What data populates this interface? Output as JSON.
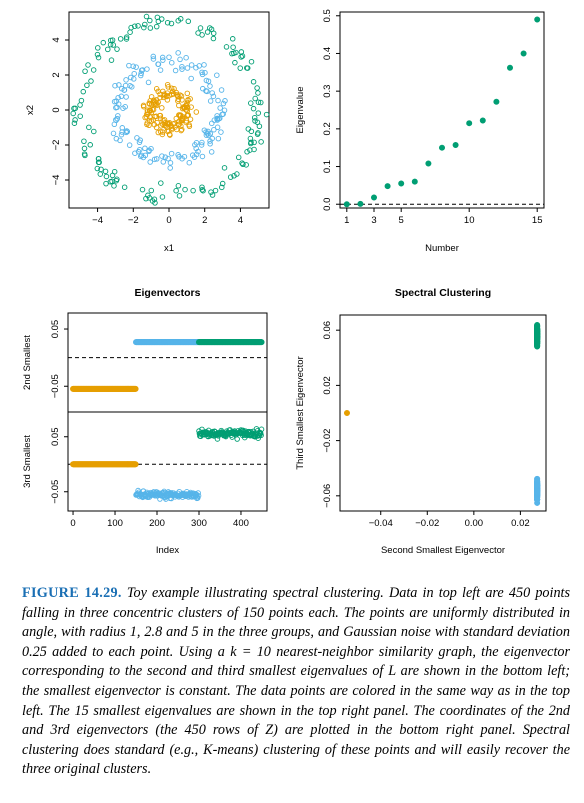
{
  "colors": {
    "orange": "#E69F00",
    "blue": "#56B4E9",
    "green": "#009E73"
  },
  "chart_data": [
    {
      "id": "scatter",
      "type": "scatter",
      "title": "",
      "xlabel": "x1",
      "ylabel": "x2",
      "xlim": [
        -5.6,
        5.6
      ],
      "ylim": [
        -5.6,
        5.6
      ],
      "xticks": [
        -4,
        -2,
        0,
        2,
        4
      ],
      "yticks": [
        -4,
        -2,
        0,
        2,
        4
      ],
      "series": [
        {
          "color": "orange",
          "radius": 1.0,
          "n": 150
        },
        {
          "color": "blue",
          "radius": 2.8,
          "n": 150
        },
        {
          "color": "green",
          "radius": 5.0,
          "n": 150
        }
      ]
    },
    {
      "id": "eigenvalues",
      "type": "scatter",
      "title": "",
      "xlabel": "Number",
      "ylabel": "Eigenvalue",
      "xlim": [
        0.5,
        15.5
      ],
      "ylim": [
        -0.01,
        0.51
      ],
      "xticks": [
        1,
        3,
        5,
        10,
        15
      ],
      "yticks": [
        0.0,
        0.1,
        0.2,
        0.3,
        0.4,
        0.5
      ],
      "reference_line": 0,
      "x": [
        1,
        2,
        3,
        4,
        5,
        6,
        7,
        8,
        9,
        10,
        11,
        12,
        13,
        14,
        15
      ],
      "y": [
        0.0,
        0.001,
        0.018,
        0.048,
        0.055,
        0.06,
        0.108,
        0.15,
        0.157,
        0.215,
        0.222,
        0.272,
        0.362,
        0.4,
        0.49
      ]
    },
    {
      "id": "eigenvectors",
      "type": "scatter",
      "title": "Eigenvectors",
      "xlabel": "Index",
      "xlim": [
        -12,
        462
      ],
      "xticks": [
        0,
        100,
        200,
        300,
        400
      ],
      "panels": [
        {
          "ylabel": "2nd Smallest",
          "ylim": [
            -0.095,
            0.078
          ],
          "yticks": [
            -0.05,
            0.05
          ],
          "reference_line": 0,
          "segments": [
            {
              "color": "orange",
              "x_range": [
                0,
                149
              ],
              "value": -0.0545,
              "spread": 0
            },
            {
              "color": "blue",
              "x_range": [
                150,
                299
              ],
              "value": 0.0272,
              "spread": 0
            },
            {
              "color": "green",
              "x_range": [
                300,
                449
              ],
              "value": 0.0272,
              "spread": 0
            }
          ]
        },
        {
          "ylabel": "3rd Smallest",
          "ylim": [
            -0.085,
            0.095
          ],
          "yticks": [
            -0.05,
            0.05
          ],
          "reference_line": 0,
          "segments": [
            {
              "color": "orange",
              "x_range": [
                0,
                149
              ],
              "value": 0.0,
              "spread": 0
            },
            {
              "color": "blue",
              "x_range": [
                150,
                299
              ],
              "value": -0.056,
              "spread": 0.007
            },
            {
              "color": "green",
              "x_range": [
                300,
                449
              ],
              "value": 0.056,
              "spread": 0.007
            }
          ]
        }
      ]
    },
    {
      "id": "spectral",
      "type": "scatter",
      "title": "Spectral Clustering",
      "xlabel": "Second Smallest Eigenvector",
      "ylabel": "Third Smallest Eigenvector",
      "xlim": [
        -0.0575,
        0.031
      ],
      "ylim": [
        -0.071,
        0.071
      ],
      "xticks": [
        -0.04,
        -0.02,
        0.0,
        0.02
      ],
      "yticks": [
        -0.06,
        -0.02,
        0.02,
        0.06
      ],
      "series": [
        {
          "color": "orange",
          "x": -0.0545,
          "y": 0.0,
          "spread": 0
        },
        {
          "color": "blue",
          "x": 0.0272,
          "y": -0.056,
          "spread": 0.007
        },
        {
          "color": "green",
          "x": 0.0272,
          "y": 0.056,
          "spread": 0.007
        }
      ]
    }
  ],
  "caption": {
    "label": "FIGURE 14.29.",
    "text": "Toy example illustrating spectral clustering. Data in top left are 450 points falling in three concentric clusters of 150 points each. The points are uniformly distributed in angle, with radius 1, 2.8 and 5 in the three groups, and Gaussian noise with standard deviation 0.25 added to each point. Using a k = 10 nearest-neighbor similarity graph, the eigenvector corresponding to the second and third smallest eigenvalues of L are shown in the bottom left; the smallest eigenvector is constant. The data points are colored in the same way as in the top left. The 15 smallest eigenvalues are shown in the top right panel. The coordinates of the 2nd and 3rd eigenvectors (the 450 rows of Z) are plotted in the bottom right panel. Spectral clustering does standard (e.g., K-means) clustering of these points and will easily recover the three original clusters."
  }
}
